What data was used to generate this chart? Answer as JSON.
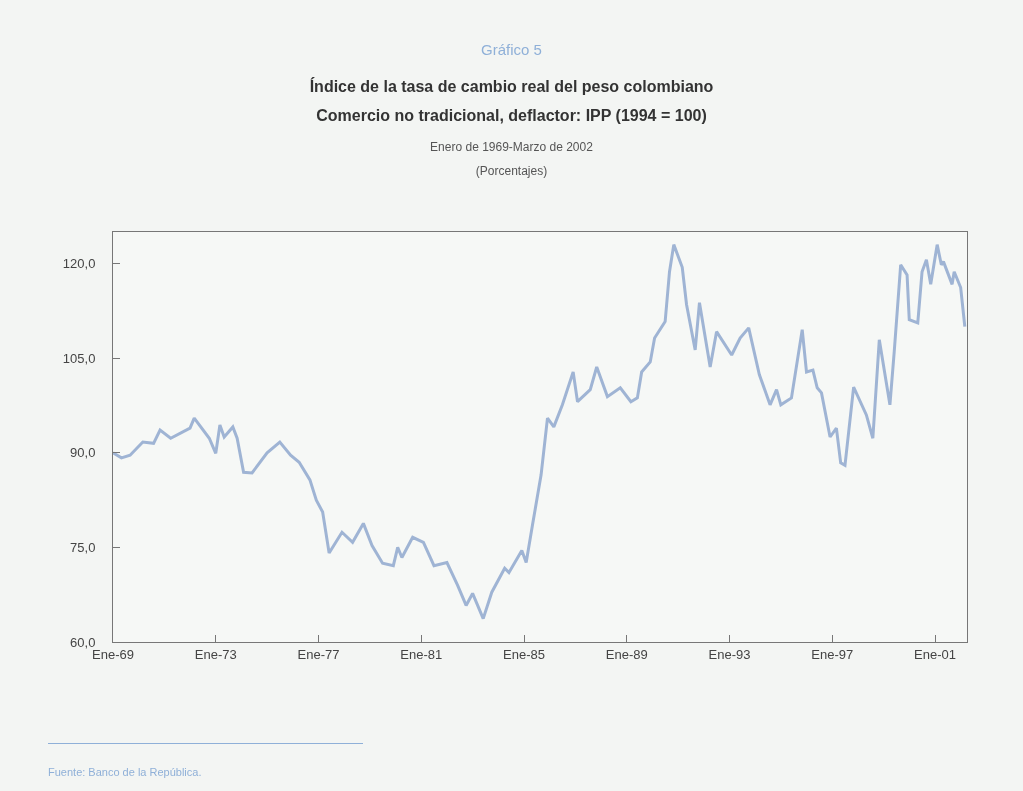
{
  "chart_data": {
    "type": "line",
    "title": "Índice de la tasa de cambio real del peso colombiano",
    "subtitle": "Comercio no tradicional, deflactor: IPP (1994 = 100)",
    "annotations": [
      "Gráfico 5",
      "Enero de 1969-Marzo de 2002",
      "(Porcentajes)",
      "Fuente: Banco de la República."
    ],
    "x": [
      "1969-01",
      "1969-05",
      "1969-09",
      "1970-03",
      "1970-08",
      "1970-11",
      "1971-04",
      "1972-01",
      "1972-03",
      "1972-10",
      "1973-01",
      "1973-03",
      "1973-05",
      "1973-09",
      "1973-11",
      "1974-02",
      "1974-06",
      "1975-01",
      "1975-07",
      "1975-12",
      "1976-04",
      "1976-09",
      "1976-12",
      "1977-03",
      "1977-06",
      "1977-12",
      "1978-05",
      "1978-10",
      "1979-02",
      "1979-07",
      "1979-12",
      "1980-02",
      "1980-04",
      "1980-09",
      "1981-02",
      "1981-07",
      "1982-01",
      "1982-06",
      "1982-10",
      "1983-01",
      "1983-06",
      "1983-10",
      "1984-04",
      "1984-06",
      "1984-12",
      "1985-02",
      "1985-05",
      "1985-09",
      "1985-12",
      "1986-03",
      "1986-07",
      "1986-12",
      "1987-02",
      "1987-08",
      "1987-11",
      "1988-04",
      "1988-10",
      "1989-03",
      "1989-06",
      "1989-08",
      "1989-12",
      "1990-02",
      "1990-07",
      "1990-09",
      "1990-11",
      "1991-03",
      "1991-05",
      "1991-09",
      "1991-11",
      "1992-04",
      "1992-07",
      "1993-02",
      "1993-06",
      "1993-10",
      "1994-03",
      "1994-08",
      "1994-11",
      "1995-01",
      "1995-06",
      "1995-11",
      "1996-01",
      "1996-04",
      "1996-06",
      "1996-08",
      "1996-12",
      "1997-03",
      "1997-05",
      "1997-07",
      "1997-11",
      "1998-05",
      "1998-08",
      "1998-11",
      "1999-04",
      "1999-06",
      "1999-09",
      "1999-12",
      "2000-01",
      "2000-05",
      "2000-07",
      "2000-09",
      "2000-11",
      "2001-02",
      "2001-04",
      "2001-05",
      "2001-09",
      "2001-10",
      "2002-01",
      "2002-03"
    ],
    "series": [
      {
        "color": "#9fb4d4",
        "values": [
          90.0,
          89.2,
          89.6,
          91.7,
          91.5,
          93.6,
          92.3,
          93.9,
          95.5,
          92.3,
          89.9,
          94.4,
          92.5,
          94.1,
          92.3,
          86.9,
          86.8,
          90.0,
          91.7,
          89.6,
          88.5,
          85.7,
          82.5,
          80.6,
          74.1,
          77.4,
          75.8,
          78.8,
          75.3,
          72.5,
          72.1,
          75.0,
          73.4,
          76.6,
          75.8,
          72.1,
          72.6,
          69.0,
          65.8,
          67.7,
          63.7,
          67.9,
          71.7,
          71.0,
          74.5,
          72.6,
          78.5,
          86.5,
          95.5,
          94.1,
          97.6,
          102.8,
          98.1,
          100.0,
          103.6,
          98.9,
          100.3,
          98.1,
          98.7,
          102.8,
          104.4,
          108.2,
          110.8,
          118.7,
          123.0,
          119.4,
          113.5,
          106.3,
          113.8,
          103.6,
          109.2,
          105.5,
          108.2,
          109.8,
          102.4,
          97.6,
          100.0,
          97.6,
          98.7,
          109.5,
          102.8,
          103.1,
          100.3,
          99.5,
          92.5,
          93.9,
          88.4,
          88.0,
          100.4,
          96.0,
          92.3,
          107.9,
          97.6,
          106.0,
          119.8,
          118.2,
          111.1,
          110.6,
          118.7,
          120.6,
          116.7,
          123.0,
          119.8,
          120.3,
          116.7,
          118.7,
          116.2,
          110.0
        ]
      }
    ],
    "xlim": [
      "1969-01",
      "2002-04"
    ],
    "xticks": [
      {
        "value": "1969-01",
        "label": "Ene-69"
      },
      {
        "value": "1973-01",
        "label": "Ene-73"
      },
      {
        "value": "1977-01",
        "label": "Ene-77"
      },
      {
        "value": "1981-01",
        "label": "Ene-81"
      },
      {
        "value": "1985-01",
        "label": "Ene-85"
      },
      {
        "value": "1989-01",
        "label": "Ene-89"
      },
      {
        "value": "1993-01",
        "label": "Ene-93"
      },
      {
        "value": "1997-01",
        "label": "Ene-97"
      },
      {
        "value": "2001-01",
        "label": "Ene-01"
      }
    ],
    "ylim": [
      60,
      125
    ],
    "yticks": [
      {
        "value": 60,
        "label": "60,0"
      },
      {
        "value": 75,
        "label": "75,0"
      },
      {
        "value": 90,
        "label": "90,0"
      },
      {
        "value": 105,
        "label": "105,0"
      },
      {
        "value": 120,
        "label": "120,0"
      }
    ],
    "line_style": "solid"
  }
}
